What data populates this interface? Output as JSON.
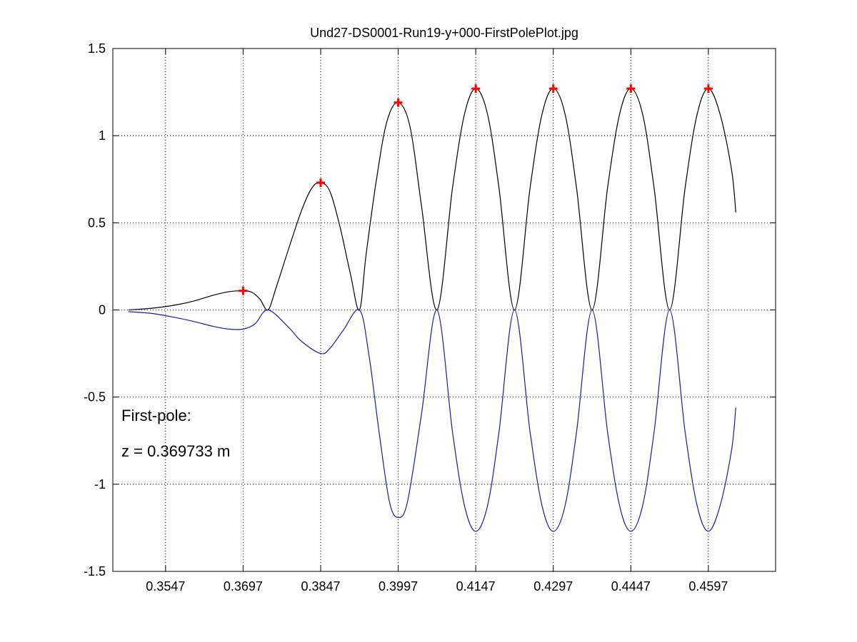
{
  "chart_data": {
    "type": "line",
    "title": "Und27-DS0001-Run19-y+000-FirstPolePlot.jpg",
    "xlabel": "",
    "ylabel": "",
    "xlim": [
      0.3445,
      0.4727
    ],
    "ylim": [
      -1.5,
      1.5
    ],
    "grid": true,
    "x_ticks": [
      "0.3547",
      "0.3697",
      "0.3847",
      "0.3997",
      "0.4147",
      "0.4297",
      "0.4447",
      "0.4597"
    ],
    "y_ticks": [
      "1.5",
      "1",
      "0.5",
      "0",
      "-0.5",
      "-1",
      "-1.5"
    ],
    "series": [
      {
        "color": "#000000",
        "points": [
          [
            0.3475,
            0.0
          ],
          [
            0.352,
            0.01
          ],
          [
            0.356,
            0.025
          ],
          [
            0.36,
            0.05
          ],
          [
            0.364,
            0.085
          ],
          [
            0.367,
            0.105
          ],
          [
            0.3697,
            0.11
          ],
          [
            0.3715,
            0.1
          ],
          [
            0.373,
            0.06
          ],
          [
            0.3745,
            0.0
          ],
          [
            0.376,
            0.12
          ],
          [
            0.3785,
            0.35
          ],
          [
            0.381,
            0.57
          ],
          [
            0.383,
            0.7
          ],
          [
            0.3847,
            0.73
          ],
          [
            0.3865,
            0.68
          ],
          [
            0.3885,
            0.47
          ],
          [
            0.3905,
            0.2
          ],
          [
            0.3922,
            0.0
          ],
          [
            0.3935,
            0.32
          ],
          [
            0.3955,
            0.75
          ],
          [
            0.3975,
            1.08
          ],
          [
            0.3997,
            1.19
          ],
          [
            0.402,
            1.05
          ],
          [
            0.4042,
            0.6
          ],
          [
            0.4072,
            0.0
          ],
          [
            0.4102,
            0.7
          ],
          [
            0.4125,
            1.12
          ],
          [
            0.4147,
            1.27
          ],
          [
            0.417,
            1.12
          ],
          [
            0.4192,
            0.7
          ],
          [
            0.4222,
            0.0
          ],
          [
            0.4252,
            0.7
          ],
          [
            0.4275,
            1.12
          ],
          [
            0.4297,
            1.27
          ],
          [
            0.432,
            1.12
          ],
          [
            0.4342,
            0.7
          ],
          [
            0.4372,
            0.0
          ],
          [
            0.4402,
            0.7
          ],
          [
            0.4425,
            1.12
          ],
          [
            0.4447,
            1.27
          ],
          [
            0.447,
            1.12
          ],
          [
            0.4492,
            0.7
          ],
          [
            0.4522,
            0.0
          ],
          [
            0.4552,
            0.7
          ],
          [
            0.4575,
            1.12
          ],
          [
            0.4597,
            1.27
          ],
          [
            0.462,
            1.12
          ],
          [
            0.4642,
            0.8
          ],
          [
            0.465,
            0.56
          ]
        ]
      },
      {
        "color": "#1a1aa8",
        "points": [
          [
            0.3475,
            -0.01
          ],
          [
            0.352,
            -0.02
          ],
          [
            0.356,
            -0.04
          ],
          [
            0.36,
            -0.065
          ],
          [
            0.364,
            -0.095
          ],
          [
            0.367,
            -0.11
          ],
          [
            0.3697,
            -0.11
          ],
          [
            0.372,
            -0.08
          ],
          [
            0.3745,
            0.0
          ],
          [
            0.3785,
            -0.1
          ],
          [
            0.381,
            -0.18
          ],
          [
            0.3847,
            -0.25
          ],
          [
            0.3865,
            -0.22
          ],
          [
            0.389,
            -0.12
          ],
          [
            0.3922,
            0.0
          ],
          [
            0.394,
            -0.25
          ],
          [
            0.396,
            -0.7
          ],
          [
            0.398,
            -1.1
          ],
          [
            0.3997,
            -1.19
          ],
          [
            0.4015,
            -1.1
          ],
          [
            0.4042,
            -0.6
          ],
          [
            0.4072,
            0.0
          ],
          [
            0.4102,
            -0.7
          ],
          [
            0.4125,
            -1.12
          ],
          [
            0.4147,
            -1.27
          ],
          [
            0.417,
            -1.12
          ],
          [
            0.4192,
            -0.7
          ],
          [
            0.4222,
            0.0
          ],
          [
            0.4252,
            -0.7
          ],
          [
            0.4275,
            -1.12
          ],
          [
            0.4297,
            -1.27
          ],
          [
            0.432,
            -1.12
          ],
          [
            0.4342,
            -0.7
          ],
          [
            0.4372,
            0.0
          ],
          [
            0.4402,
            -0.7
          ],
          [
            0.4425,
            -1.12
          ],
          [
            0.4447,
            -1.27
          ],
          [
            0.447,
            -1.12
          ],
          [
            0.4492,
            -0.7
          ],
          [
            0.4522,
            0.0
          ],
          [
            0.4552,
            -0.7
          ],
          [
            0.4575,
            -1.12
          ],
          [
            0.4597,
            -1.27
          ],
          [
            0.462,
            -1.12
          ],
          [
            0.4642,
            -0.8
          ],
          [
            0.465,
            -0.56
          ]
        ]
      }
    ],
    "peak_markers": {
      "color": "#ff0000",
      "points": [
        [
          0.3697,
          0.11
        ],
        [
          0.3847,
          0.73
        ],
        [
          0.3997,
          1.19
        ],
        [
          0.4147,
          1.27
        ],
        [
          0.4297,
          1.27
        ],
        [
          0.4447,
          1.27
        ],
        [
          0.4597,
          1.27
        ]
      ]
    },
    "annotations": [
      "First-pole:",
      "z = 0.369733  m"
    ]
  }
}
